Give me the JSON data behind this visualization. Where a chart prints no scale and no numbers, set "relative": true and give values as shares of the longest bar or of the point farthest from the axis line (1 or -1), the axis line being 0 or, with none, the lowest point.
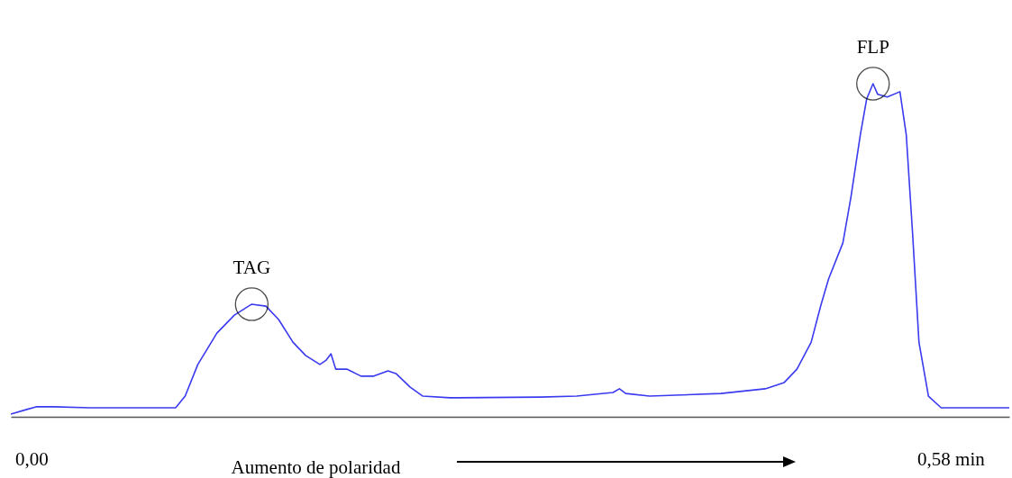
{
  "chart_data": {
    "type": "line",
    "relative": true,
    "xlabel": "Aumento de polaridad",
    "xlim": [
      -0.013,
      0.617
    ],
    "xticks": [
      {
        "value": 0,
        "label": "0,00"
      },
      {
        "value": 0.58,
        "label": "0,58 min"
      }
    ],
    "grid": false,
    "marker": "none",
    "line_style": "solid",
    "series": [
      {
        "color": "#3a3af0",
        "x": [
          -0.013,
          -0.003,
          0.003,
          0.014,
          0.037,
          0.091,
          0.097,
          0.105,
          0.117,
          0.128,
          0.139,
          0.148,
          0.156,
          0.165,
          0.173,
          0.182,
          0.186,
          0.189,
          0.192,
          0.199,
          0.208,
          0.216,
          0.225,
          0.23,
          0.239,
          0.247,
          0.264,
          0.321,
          0.344,
          0.367,
          0.371,
          0.375,
          0.39,
          0.435,
          0.463,
          0.475,
          0.483,
          0.492,
          0.498,
          0.503,
          0.512,
          0.517,
          0.523,
          0.527,
          0.531,
          0.534,
          0.54,
          0.548,
          0.552,
          0.556,
          0.56,
          0.566,
          0.574,
          0.617
        ],
        "values": [
          0.008,
          0.022,
          0.03,
          0.03,
          0.027,
          0.027,
          0.062,
          0.157,
          0.251,
          0.305,
          0.338,
          0.332,
          0.292,
          0.224,
          0.184,
          0.157,
          0.17,
          0.189,
          0.143,
          0.143,
          0.122,
          0.122,
          0.138,
          0.13,
          0.089,
          0.062,
          0.057,
          0.059,
          0.062,
          0.073,
          0.084,
          0.07,
          0.062,
          0.07,
          0.084,
          0.103,
          0.143,
          0.224,
          0.333,
          0.414,
          0.522,
          0.657,
          0.846,
          0.954,
          1.0,
          0.968,
          0.96,
          0.976,
          0.846,
          0.549,
          0.224,
          0.062,
          0.027,
          0.027
        ]
      }
    ],
    "annotations": [
      {
        "text": "TAG",
        "x": 0.139,
        "y": 0.338
      },
      {
        "text": "FLP",
        "x": 0.531,
        "y": 1.0
      }
    ]
  }
}
